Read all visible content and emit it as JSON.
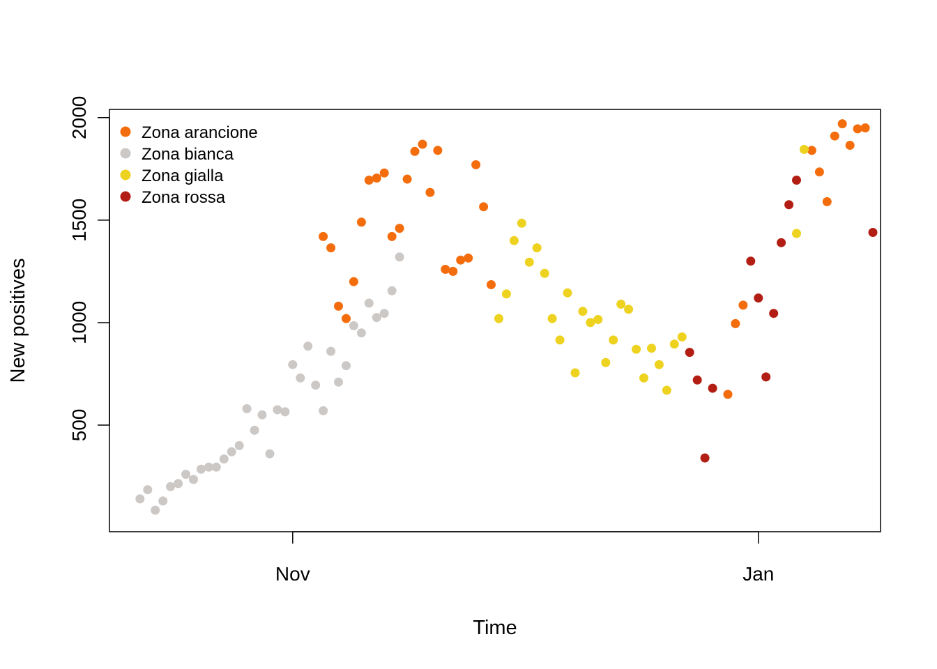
{
  "chart_data": {
    "type": "scatter",
    "title": "",
    "xlabel": "Time",
    "ylabel": "New positives",
    "x_axis": {
      "type": "date",
      "range": [
        "2020-10-08",
        "2021-01-17"
      ],
      "ticks": [
        {
          "label": "Nov",
          "date": "2020-11-01"
        },
        {
          "label": "Jan",
          "date": "2021-01-01"
        }
      ]
    },
    "y_axis": {
      "range": [
        -20,
        2040
      ],
      "ticks": [
        500,
        1000,
        1500,
        2000
      ]
    },
    "grid": false,
    "legend": {
      "position": "top-left",
      "entries": [
        {
          "key": "arancione",
          "label": "Zona arancione"
        },
        {
          "key": "bianca",
          "label": "Zona bianca"
        },
        {
          "key": "gialla",
          "label": "Zona gialla"
        },
        {
          "key": "rossa",
          "label": "Zona rossa"
        }
      ]
    },
    "colors": {
      "arancione": "#F46D0D",
      "bianca": "#CCC8C6",
      "gialla": "#EDD220",
      "rossa": "#B21E14"
    },
    "series": [
      {
        "name": "Zona bianca",
        "key": "bianca",
        "points": [
          [
            "2020-10-12",
            140
          ],
          [
            "2020-10-13",
            185
          ],
          [
            "2020-10-14",
            85
          ],
          [
            "2020-10-15",
            130
          ],
          [
            "2020-10-16",
            200
          ],
          [
            "2020-10-17",
            215
          ],
          [
            "2020-10-18",
            260
          ],
          [
            "2020-10-19",
            235
          ],
          [
            "2020-10-20",
            285
          ],
          [
            "2020-10-21",
            295
          ],
          [
            "2020-10-22",
            295
          ],
          [
            "2020-10-23",
            335
          ],
          [
            "2020-10-24",
            370
          ],
          [
            "2020-10-25",
            400
          ],
          [
            "2020-10-26",
            580
          ],
          [
            "2020-10-27",
            475
          ],
          [
            "2020-10-28",
            550
          ],
          [
            "2020-10-29",
            360
          ],
          [
            "2020-10-30",
            575
          ],
          [
            "2020-10-31",
            565
          ],
          [
            "2020-11-01",
            795
          ],
          [
            "2020-11-02",
            730
          ],
          [
            "2020-11-03",
            885
          ],
          [
            "2020-11-04",
            695
          ],
          [
            "2020-11-05",
            570
          ],
          [
            "2020-11-06",
            860
          ],
          [
            "2020-11-07",
            710
          ],
          [
            "2020-11-08",
            790
          ],
          [
            "2020-11-09",
            985
          ],
          [
            "2020-11-10",
            950
          ],
          [
            "2020-11-11",
            1095
          ],
          [
            "2020-11-12",
            1025
          ],
          [
            "2020-11-13",
            1045
          ],
          [
            "2020-11-14",
            1155
          ],
          [
            "2020-11-15",
            1320
          ]
        ]
      },
      {
        "name": "Zona arancione",
        "key": "arancione",
        "points": [
          [
            "2020-11-05",
            1420
          ],
          [
            "2020-11-06",
            1365
          ],
          [
            "2020-11-07",
            1080
          ],
          [
            "2020-11-08",
            1020
          ],
          [
            "2020-11-09",
            1200
          ],
          [
            "2020-11-10",
            1490
          ],
          [
            "2020-11-11",
            1695
          ],
          [
            "2020-11-12",
            1705
          ],
          [
            "2020-11-13",
            1730
          ],
          [
            "2020-11-14",
            1420
          ],
          [
            "2020-11-15",
            1460
          ],
          [
            "2020-11-16",
            1700
          ],
          [
            "2020-11-17",
            1835
          ],
          [
            "2020-11-18",
            1870
          ],
          [
            "2020-11-19",
            1635
          ],
          [
            "2020-11-20",
            1840
          ],
          [
            "2020-11-21",
            1260
          ],
          [
            "2020-11-22",
            1250
          ],
          [
            "2020-11-23",
            1305
          ],
          [
            "2020-11-24",
            1315
          ],
          [
            "2020-11-25",
            1770
          ],
          [
            "2020-11-26",
            1565
          ],
          [
            "2020-11-27",
            1185
          ],
          [
            "2020-12-28",
            650
          ],
          [
            "2020-12-29",
            995
          ],
          [
            "2020-12-30",
            1085
          ],
          [
            "2021-01-08",
            1840
          ],
          [
            "2021-01-09",
            1735
          ],
          [
            "2021-01-10",
            1590
          ],
          [
            "2021-01-11",
            1910
          ],
          [
            "2021-01-12",
            1970
          ],
          [
            "2021-01-13",
            1865
          ],
          [
            "2021-01-14",
            1945
          ],
          [
            "2021-01-15",
            1950
          ]
        ]
      },
      {
        "name": "Zona gialla",
        "key": "gialla",
        "points": [
          [
            "2020-11-28",
            1020
          ],
          [
            "2020-11-29",
            1140
          ],
          [
            "2020-11-30",
            1400
          ],
          [
            "2020-12-01",
            1485
          ],
          [
            "2020-12-02",
            1295
          ],
          [
            "2020-12-03",
            1365
          ],
          [
            "2020-12-04",
            1240
          ],
          [
            "2020-12-05",
            1020
          ],
          [
            "2020-12-06",
            915
          ],
          [
            "2020-12-07",
            1145
          ],
          [
            "2020-12-08",
            755
          ],
          [
            "2020-12-09",
            1055
          ],
          [
            "2020-12-10",
            1000
          ],
          [
            "2020-12-11",
            1015
          ],
          [
            "2020-12-12",
            805
          ],
          [
            "2020-12-13",
            915
          ],
          [
            "2020-12-14",
            1090
          ],
          [
            "2020-12-15",
            1065
          ],
          [
            "2020-12-16",
            870
          ],
          [
            "2020-12-17",
            730
          ],
          [
            "2020-12-18",
            875
          ],
          [
            "2020-12-19",
            795
          ],
          [
            "2020-12-20",
            670
          ],
          [
            "2020-12-21",
            895
          ],
          [
            "2020-12-22",
            930
          ],
          [
            "2021-01-06",
            1435
          ],
          [
            "2021-01-07",
            1845
          ]
        ]
      },
      {
        "name": "Zona rossa",
        "key": "rossa",
        "points": [
          [
            "2020-12-23",
            855
          ],
          [
            "2020-12-24",
            720
          ],
          [
            "2020-12-25",
            340
          ],
          [
            "2020-12-26",
            680
          ],
          [
            "2020-12-31",
            1300
          ],
          [
            "2021-01-01",
            1120
          ],
          [
            "2021-01-02",
            735
          ],
          [
            "2021-01-03",
            1045
          ],
          [
            "2021-01-04",
            1390
          ],
          [
            "2021-01-05",
            1575
          ],
          [
            "2021-01-06",
            1695
          ],
          [
            "2021-01-16",
            1440
          ]
        ]
      }
    ]
  }
}
